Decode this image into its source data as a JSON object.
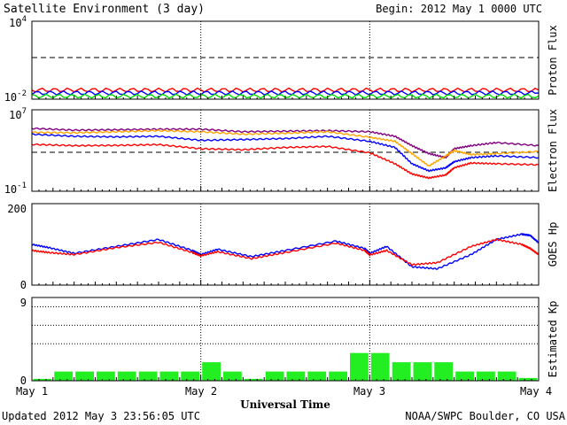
{
  "title": "Satellite Environment (3 day)",
  "begin_label": "Begin:  2012 May 1 0000 UTC",
  "footer_left": "Updated 2012 May  3 23:56:05 UTC",
  "footer_right": "NOAA/SWPC Boulder, CO USA",
  "x_axis": {
    "label": "Universal Time",
    "ticks": [
      "May 1",
      "May 2",
      "May 3",
      "May 4"
    ]
  },
  "chart_data": [
    {
      "type": "line",
      "panel": "proton-flux",
      "ylabel": "Proton Flux",
      "yscale": "log",
      "ylim": [
        0.01,
        10000
      ],
      "ytick_labels": [
        {
          "base": "10",
          "exp": "4"
        },
        {
          "base": "10",
          "exp": "-2"
        }
      ],
      "threshold": 10,
      "x": [
        0,
        0.5,
        1,
        1.5,
        2,
        2.5,
        3
      ],
      "series": [
        {
          "color": "#ff0000",
          "values": [
            0.05,
            0.05,
            0.05,
            0.05,
            0.05,
            0.05,
            0.05
          ]
        },
        {
          "color": "#0000ff",
          "values": [
            0.03,
            0.03,
            0.03,
            0.03,
            0.03,
            0.03,
            0.03
          ]
        },
        {
          "color": "#00dd00",
          "values": [
            0.017,
            0.017,
            0.017,
            0.017,
            0.017,
            0.017,
            0.017
          ]
        }
      ]
    },
    {
      "type": "line",
      "panel": "electron-flux",
      "ylabel": "Electron Flux",
      "yscale": "log",
      "ylim": [
        0.1,
        10000000
      ],
      "ytick_labels": [
        {
          "base": "10",
          "exp": "7"
        },
        {
          "base": "10",
          "exp": "-1"
        }
      ],
      "threshold": 1000,
      "x": [
        0,
        0.25,
        0.5,
        0.75,
        1,
        1.25,
        1.5,
        1.75,
        2,
        2.15,
        2.25,
        2.35,
        2.45,
        2.5,
        2.6,
        2.75,
        3
      ],
      "series": [
        {
          "color": "#800080",
          "values": [
            150000,
            100000,
            110000,
            125000,
            125000,
            70000,
            80000,
            90000,
            70000,
            25000,
            3000,
            500,
            200,
            1500,
            3000,
            6000,
            3000
          ]
        },
        {
          "color": "#ffa500",
          "values": [
            60000,
            55000,
            70000,
            90000,
            70000,
            40000,
            50000,
            70000,
            20000,
            8000,
            500,
            30,
            300,
            1000,
            400,
            500,
            800
          ]
        },
        {
          "color": "#0000ff",
          "values": [
            40000,
            25000,
            22000,
            25000,
            10000,
            12000,
            15000,
            25000,
            8000,
            2000,
            50,
            10,
            20,
            80,
            200,
            300,
            200
          ]
        },
        {
          "color": "#ff0000",
          "values": [
            4000,
            3000,
            3200,
            3800,
            1500,
            1200,
            2000,
            2500,
            600,
            50,
            5,
            2,
            4,
            20,
            60,
            50,
            40
          ]
        }
      ]
    },
    {
      "type": "line",
      "panel": "goes-hp",
      "ylabel": "GOES Hp",
      "ylim": [
        0,
        200
      ],
      "ytick_labels": [
        "200",
        "0"
      ],
      "x": [
        0,
        0.1,
        0.25,
        0.5,
        0.75,
        0.95,
        1,
        1.1,
        1.3,
        1.5,
        1.8,
        1.97,
        2,
        2.1,
        2.25,
        2.4,
        2.6,
        2.75,
        2.9,
        2.95,
        3
      ],
      "series": [
        {
          "color": "#0000ff",
          "values": [
            100,
            92,
            78,
            95,
            112,
            85,
            75,
            88,
            70,
            85,
            108,
            90,
            78,
            95,
            45,
            40,
            75,
            112,
            125,
            122,
            104
          ]
        },
        {
          "color": "#ff0000",
          "values": [
            85,
            80,
            75,
            92,
            105,
            80,
            72,
            82,
            65,
            80,
            103,
            85,
            74,
            85,
            50,
            55,
            95,
            112,
            100,
            90,
            75
          ]
        }
      ]
    },
    {
      "type": "bar",
      "panel": "estimated-kp",
      "ylabel": "Estimated Kp",
      "ylim": [
        0,
        9
      ],
      "ytick_labels": [
        "9",
        "0"
      ],
      "gridlines": [
        4,
        6,
        8
      ],
      "color": "#22ee22",
      "values": [
        0.2,
        1,
        1,
        1,
        1,
        1,
        1,
        1,
        2,
        1,
        0.2,
        1,
        1,
        1,
        1,
        3,
        3,
        2,
        2,
        2,
        1,
        1,
        1,
        0.3
      ]
    }
  ]
}
